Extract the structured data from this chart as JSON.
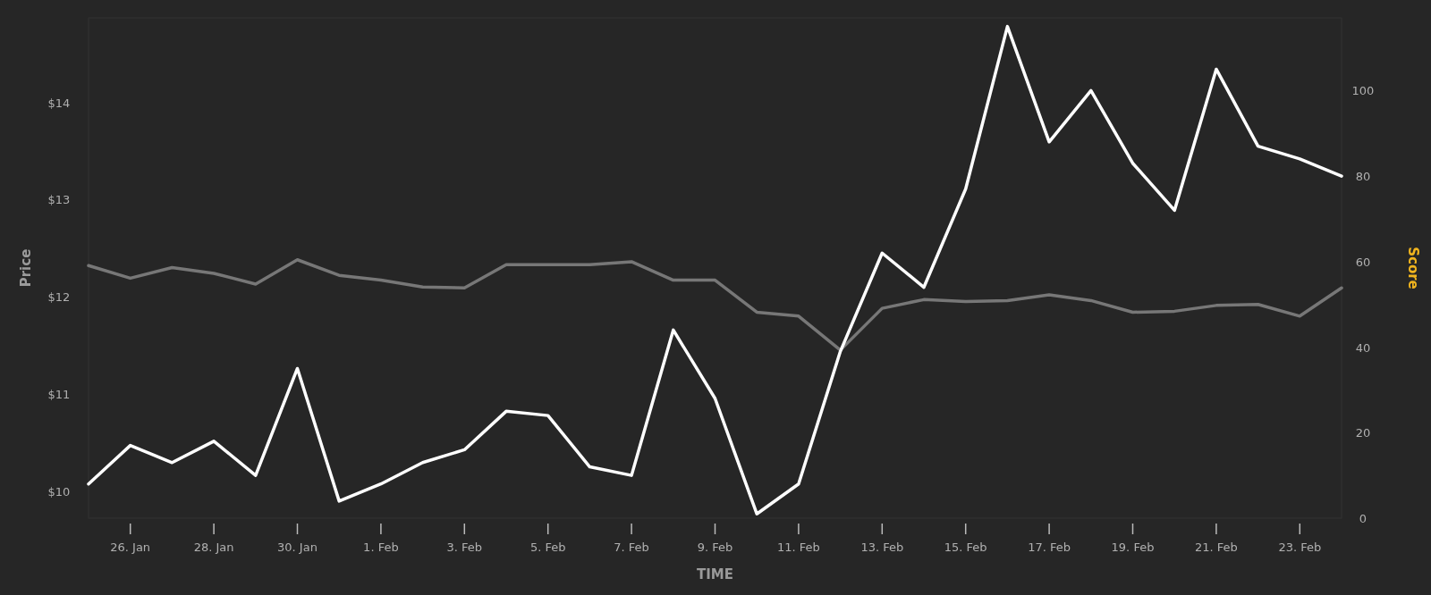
{
  "chart_data": {
    "type": "line",
    "xlabel": "TIME",
    "ylabel": "Price",
    "y2label": "Score",
    "x": [
      "--01-25",
      "--01-26",
      "--01-27",
      "--01-28",
      "--01-29",
      "--01-30",
      "--01-31",
      "--02-01",
      "--02-02",
      "--02-03",
      "--02-04",
      "--02-05",
      "--02-06",
      "--02-07",
      "--02-08",
      "--02-09",
      "--02-10",
      "--02-11",
      "--02-12",
      "--02-13",
      "--02-14",
      "--02-15",
      "--02-16",
      "--02-17",
      "--02-18",
      "--02-19",
      "--02-20",
      "--02-21",
      "--02-22",
      "--02-23",
      "--02-24"
    ],
    "series": [
      {
        "color": "#777777",
        "values": [
          12.32,
          12.19,
          12.3,
          12.24,
          12.13,
          12.38,
          12.22,
          12.17,
          12.1,
          12.09,
          12.33,
          12.33,
          12.33,
          12.36,
          12.17,
          12.17,
          11.84,
          11.8,
          11.45,
          11.88,
          11.97,
          11.95,
          11.96,
          12.02,
          11.96,
          11.84,
          11.85,
          11.91,
          11.92,
          11.8,
          12.09
        ]
      },
      {
        "color": "#ffffff",
        "axis": "y2",
        "values": [
          8,
          17,
          13,
          18,
          10,
          35,
          4,
          8,
          13,
          16,
          25,
          24,
          12,
          10,
          44,
          28,
          1,
          8,
          39,
          62,
          54,
          77,
          115,
          88,
          100,
          83,
          72,
          105,
          87,
          84,
          80
        ]
      }
    ],
    "xlim": [
      "--01-25",
      "--02-24"
    ],
    "xticks": [
      {
        "value": "--01-26",
        "label": "26. Jan"
      },
      {
        "value": "--01-28",
        "label": "28. Jan"
      },
      {
        "value": "--01-30",
        "label": "30. Jan"
      },
      {
        "value": "--02-01",
        "label": "1. Feb"
      },
      {
        "value": "--02-03",
        "label": "3. Feb"
      },
      {
        "value": "--02-05",
        "label": "5. Feb"
      },
      {
        "value": "--02-07",
        "label": "7. Feb"
      },
      {
        "value": "--02-09",
        "label": "9. Feb"
      },
      {
        "value": "--02-11",
        "label": "11. Feb"
      },
      {
        "value": "--02-13",
        "label": "13. Feb"
      },
      {
        "value": "--02-15",
        "label": "15. Feb"
      },
      {
        "value": "--02-17",
        "label": "17. Feb"
      },
      {
        "value": "--02-19",
        "label": "19. Feb"
      },
      {
        "value": "--02-21",
        "label": "21. Feb"
      },
      {
        "value": "--02-23",
        "label": "23. Feb"
      }
    ],
    "ylim": [
      9.72,
      14.87
    ],
    "yticks": [
      {
        "value": 10,
        "label": "$10"
      },
      {
        "value": 11,
        "label": "$11"
      },
      {
        "value": 12,
        "label": "$12"
      },
      {
        "value": 13,
        "label": "$13"
      },
      {
        "value": 14,
        "label": "$14"
      }
    ],
    "y2lim": [
      0,
      117
    ],
    "y2ticks": [
      0,
      20,
      40,
      60,
      80,
      100
    ],
    "grid": false
  }
}
